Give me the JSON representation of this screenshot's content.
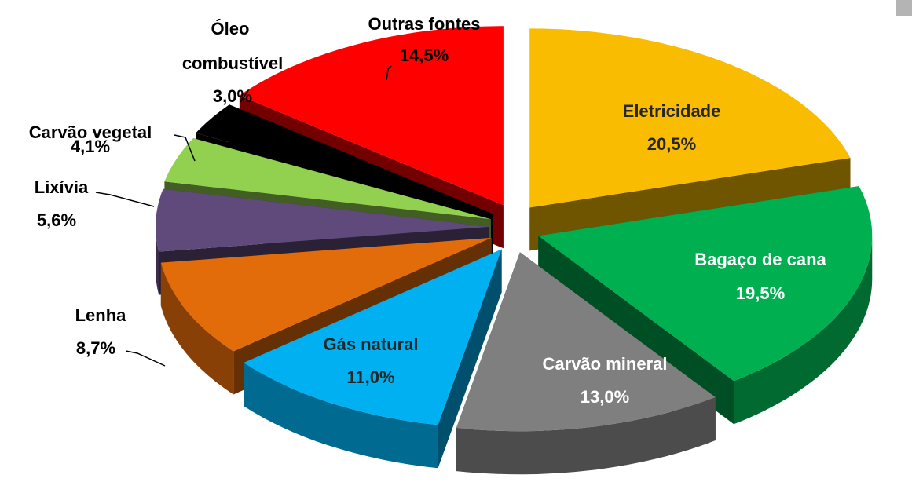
{
  "chart_data": {
    "type": "pie",
    "categories": [
      "Eletricidade",
      "Bagaço de cana",
      "Carvão mineral",
      "Gás natural",
      "Lenha",
      "Lixívia",
      "Carvão vegetal",
      "Óleo combustível",
      "Outras fontes"
    ],
    "values": [
      20.5,
      19.5,
      13.0,
      11.0,
      8.7,
      5.6,
      4.1,
      3.0,
      14.5
    ],
    "value_labels": [
      "20,5%",
      "19,5%",
      "13,0%",
      "11,0%",
      "8,7%",
      "5,6%",
      "4,1%",
      "3,0%",
      "14,5%"
    ],
    "colors": [
      "#f9bc00",
      "#00b050",
      "#7f7f7f",
      "#00b0f0",
      "#e26b0a",
      "#604a7b",
      "#92d050",
      "#000000",
      "#ff0000"
    ]
  }
}
